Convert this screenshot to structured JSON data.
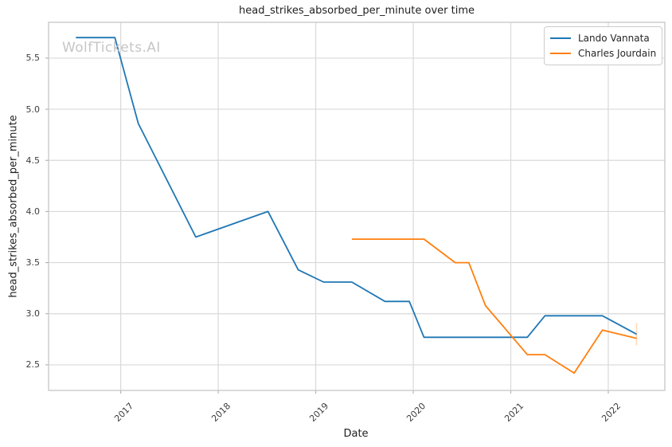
{
  "figure": {
    "watermark": "WolfTickets.AI"
  },
  "chart_data": {
    "type": "line",
    "title": "head_strikes_absorbed_per_minute over time",
    "xlabel": "Date",
    "ylabel": "head_strikes_absorbed_per_minute",
    "xlim": [
      2016.26,
      2022.58
    ],
    "ylim": [
      2.25,
      5.85
    ],
    "grid": true,
    "x_ticks": {
      "values": [
        2017,
        2018,
        2019,
        2020,
        2021,
        2022
      ],
      "labels": [
        "2017",
        "2018",
        "2019",
        "2020",
        "2021",
        "2022"
      ]
    },
    "y_ticks": {
      "values": [
        2.5,
        3.0,
        3.5,
        4.0,
        4.5,
        5.0,
        5.5
      ],
      "labels": [
        "2.5",
        "3.0",
        "3.5",
        "4.0",
        "4.5",
        "5.0",
        "5.5"
      ]
    },
    "legend": {
      "position": "upper right",
      "entries": [
        "Lando Vannata",
        "Charles Jourdain"
      ]
    },
    "series": [
      {
        "name": "Lando Vannata",
        "color": "#1f77b4",
        "x": [
          2016.54,
          2016.94,
          2017.18,
          2017.77,
          2018.51,
          2018.82,
          2019.08,
          2019.37,
          2019.71,
          2019.96,
          2020.11,
          2021.17,
          2021.35,
          2021.94,
          2022.29
        ],
        "y": [
          5.7,
          5.7,
          4.86,
          3.75,
          4.0,
          3.43,
          3.31,
          3.31,
          3.12,
          3.12,
          2.77,
          2.77,
          2.98,
          2.98,
          2.8
        ]
      },
      {
        "name": "Charles Jourdain",
        "color": "#ff7f0e",
        "x": [
          2019.37,
          2020.11,
          2020.43,
          2020.57,
          2020.74,
          2021.17,
          2021.35,
          2021.65,
          2021.94,
          2022.29
        ],
        "y": [
          3.73,
          3.73,
          3.5,
          3.5,
          3.08,
          2.6,
          2.6,
          2.42,
          2.84,
          2.76
        ]
      }
    ],
    "endpoint_artifact": {
      "x": 2022.29,
      "y_top": 2.91,
      "y_bottom": 2.69,
      "color": "#ff7f0e",
      "opacity": 0.3
    }
  },
  "colors": {
    "background": "#ffffff",
    "grid": "#d9d9d9",
    "spine": "#c6c6c6",
    "tick_mark": "#b0b0b0",
    "title_text": "#1f1f1f",
    "axis_label_text": "#1f1f1f",
    "tick_text": "#3d3d3d",
    "watermark_text": "#c6c6c6",
    "legend_text": "#262626",
    "legend_border": "#cccccc"
  }
}
